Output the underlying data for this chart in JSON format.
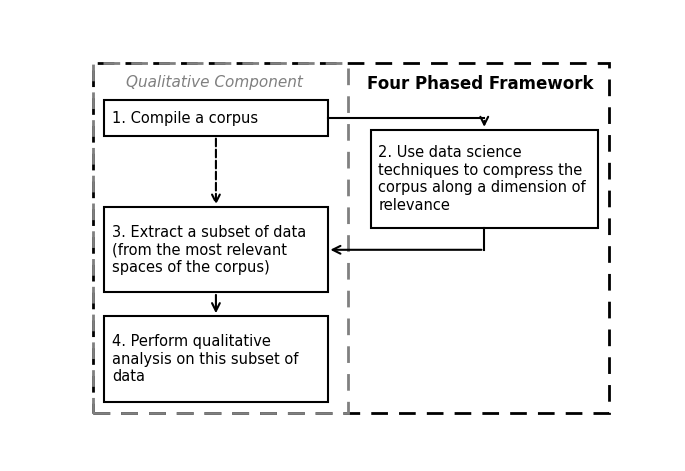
{
  "title_left": "Qualitative Component",
  "title_right": "Four Phased Framework",
  "box1_text": "1. Compile a corpus",
  "box2_text": "2. Use data science\ntechniques to compress the\ncorpus along a dimension of\nrelevance",
  "box3_text": "3. Extract a subset of data\n(from the most relevant\nspaces of the corpus)",
  "box4_text": "4. Perform qualitative\nanalysis on this subset of\ndata",
  "outer_border_color": "#000000",
  "inner_left_border_color": "#808080",
  "box_fill": "#ffffff",
  "box_edge": "#000000",
  "arrow_color": "#000000",
  "bg_color": "#ffffff",
  "title_left_color": "#808080",
  "title_right_color": "#000000"
}
